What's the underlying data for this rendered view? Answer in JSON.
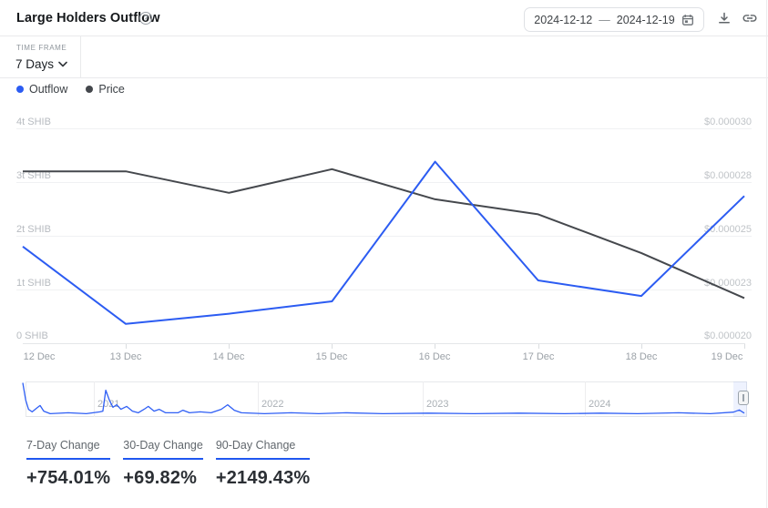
{
  "header": {
    "title": "Large Holders Outflow",
    "date_start": "2024-12-12",
    "date_separator": "—",
    "date_end": "2024-12-19"
  },
  "timeframe": {
    "label": "TIME FRAME",
    "value": "7 Days"
  },
  "legend": {
    "outflow": "Outflow",
    "price": "Price"
  },
  "colors": {
    "outflow": "#2c5cf2",
    "price": "#45484d",
    "accent": "#1f57f0"
  },
  "chart_data": [
    {
      "type": "line",
      "title": "Large Holders Outflow",
      "categories": [
        "12 Dec",
        "13 Dec",
        "14 Dec",
        "15 Dec",
        "16 Dec",
        "17 Dec",
        "18 Dec",
        "19 Dec"
      ],
      "series": [
        {
          "name": "Outflow",
          "yaxis": "left",
          "unit": "trillion SHIB",
          "color": "#2c5cf2",
          "values": [
            1.8,
            0.36,
            0.55,
            0.78,
            3.38,
            1.17,
            0.88,
            2.74
          ]
        },
        {
          "name": "Price",
          "yaxis": "right",
          "unit": "USD",
          "color": "#45484d",
          "values": [
            2.8e-05,
            2.8e-05,
            2.7e-05,
            2.81e-05,
            2.67e-05,
            2.6e-05,
            2.42e-05,
            2.21e-05
          ]
        }
      ],
      "y_left_labels": [
        "4t SHIB",
        "3t SHIB",
        "2t SHIB",
        "1t SHIB",
        "0 SHIB"
      ],
      "y_left_range": [
        0,
        4
      ],
      "y_right_labels": [
        "$0.000030",
        "$0.000028",
        "$0.000025",
        "$0.000023",
        "$0.000020"
      ],
      "y_right_range": [
        2e-05,
        3e-05
      ],
      "grid": "horizontal",
      "legend_position": "top-left"
    },
    {
      "type": "line",
      "title": "timeline-navigator",
      "x_year_labels": [
        "2021",
        "2022",
        "2023",
        "2024"
      ],
      "year_line_fx": [
        0.0985,
        0.3258,
        0.5543,
        0.779
      ],
      "selection": [
        0.985,
        1.0
      ],
      "points": [
        [
          0.0,
          1.0
        ],
        [
          0.004,
          0.46
        ],
        [
          0.008,
          0.17
        ],
        [
          0.013,
          0.09
        ],
        [
          0.019,
          0.2
        ],
        [
          0.024,
          0.29
        ],
        [
          0.029,
          0.11
        ],
        [
          0.038,
          0.03
        ],
        [
          0.063,
          0.06
        ],
        [
          0.088,
          0.03
        ],
        [
          0.107,
          0.09
        ],
        [
          0.111,
          0.11
        ],
        [
          0.115,
          0.77
        ],
        [
          0.12,
          0.46
        ],
        [
          0.125,
          0.23
        ],
        [
          0.13,
          0.31
        ],
        [
          0.136,
          0.17
        ],
        [
          0.144,
          0.26
        ],
        [
          0.152,
          0.11
        ],
        [
          0.16,
          0.06
        ],
        [
          0.168,
          0.17
        ],
        [
          0.174,
          0.26
        ],
        [
          0.182,
          0.11
        ],
        [
          0.189,
          0.17
        ],
        [
          0.198,
          0.06
        ],
        [
          0.215,
          0.06
        ],
        [
          0.222,
          0.14
        ],
        [
          0.231,
          0.06
        ],
        [
          0.246,
          0.09
        ],
        [
          0.261,
          0.06
        ],
        [
          0.275,
          0.17
        ],
        [
          0.284,
          0.31
        ],
        [
          0.293,
          0.14
        ],
        [
          0.303,
          0.06
        ],
        [
          0.335,
          0.03
        ],
        [
          0.372,
          0.06
        ],
        [
          0.41,
          0.03
        ],
        [
          0.448,
          0.06
        ],
        [
          0.499,
          0.03
        ],
        [
          0.562,
          0.05
        ],
        [
          0.625,
          0.03
        ],
        [
          0.688,
          0.05
        ],
        [
          0.751,
          0.03
        ],
        [
          0.801,
          0.05
        ],
        [
          0.852,
          0.03
        ],
        [
          0.909,
          0.06
        ],
        [
          0.953,
          0.03
        ],
        [
          0.985,
          0.08
        ],
        [
          0.993,
          0.15
        ],
        [
          1.0,
          0.05
        ]
      ]
    }
  ],
  "stats": [
    {
      "label": "7-Day Change",
      "value": "+754.01%"
    },
    {
      "label": "30-Day Change",
      "value": "+69.82%"
    },
    {
      "label": "90-Day Change",
      "value": "+2149.43%"
    }
  ]
}
